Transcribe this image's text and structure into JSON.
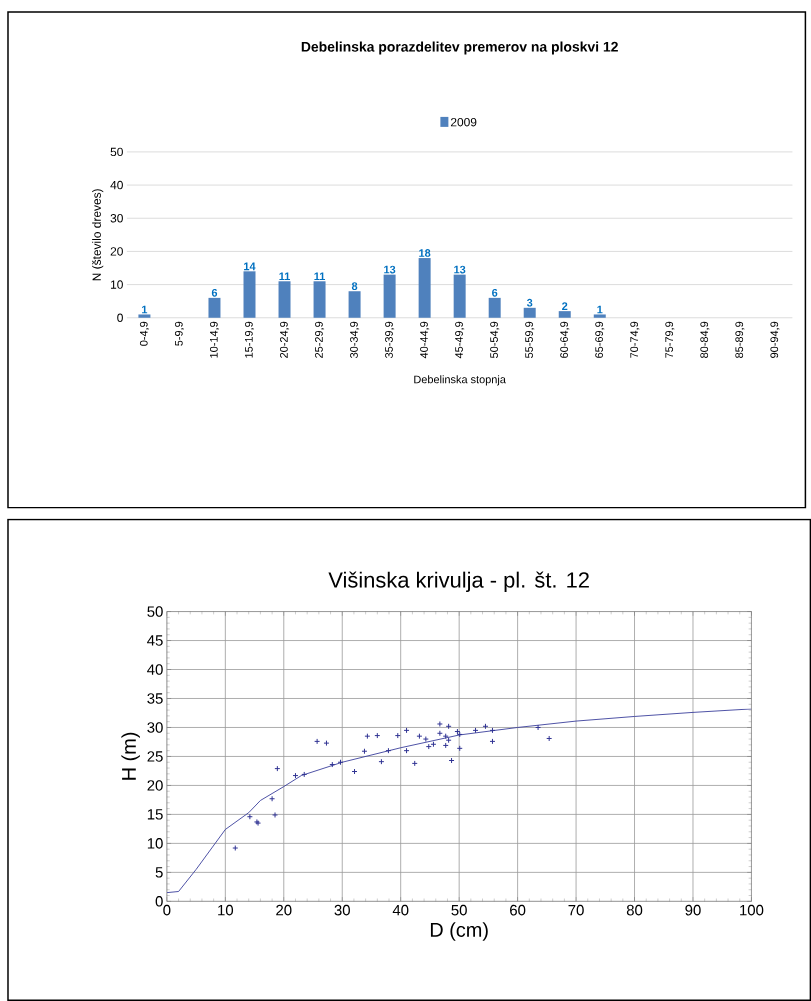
{
  "chart_data": [
    {
      "type": "bar",
      "title": "Debelinska porazdelitev premerov na ploskvi 12",
      "xlabel": "Debelinska stopnja",
      "ylabel": "N (število dreves)",
      "categories": [
        "0-4,9",
        "5-9,9",
        "10-14,9",
        "15-19,9",
        "20-24,9",
        "25-29,9",
        "30-34,9",
        "35-39,9",
        "40-44,9",
        "45-49,9",
        "50-54,9",
        "55-59,9",
        "60-64,9",
        "65-69,9",
        "70-74,9",
        "75-79,9",
        "80-84,9",
        "85-89,9",
        "90-94,9"
      ],
      "series": [
        {
          "name": "2009",
          "color": "#4f81bd",
          "values": [
            1,
            0,
            6,
            14,
            11,
            11,
            8,
            13,
            18,
            13,
            6,
            3,
            2,
            1,
            0,
            0,
            0,
            0,
            0
          ],
          "value_labels": [
            "1",
            null,
            "6",
            "14",
            "11",
            "11",
            "8",
            "13",
            "18",
            "13",
            "6",
            "3",
            "2",
            "1",
            null,
            null,
            null,
            null,
            null
          ]
        }
      ],
      "ylim": [
        0,
        50
      ],
      "yticks": [
        0,
        10,
        20,
        30,
        40,
        50
      ],
      "grid": "y",
      "legend": "top"
    },
    {
      "type": "scatter",
      "title": "Višinska krivulja - pl. št. 12",
      "xlabel": "D (cm)",
      "ylabel": "H (m)",
      "series": [
        {
          "type": "scatter",
          "color": "#2e3192",
          "marker": "cross",
          "x": [
            11.7,
            14.2,
            15.4,
            15.6,
            18.0,
            18.5,
            18.9,
            22.0,
            23.5,
            25.7,
            27.3,
            28.3,
            29.7,
            32.1,
            33.8,
            34.3,
            36.0,
            36.7,
            37.9,
            39.5,
            41.0,
            41.0,
            42.4,
            43.2,
            44.3,
            44.8,
            45.6,
            46.7,
            46.7,
            47.7,
            47.7,
            48.2,
            48.2,
            48.7,
            49.7,
            50.1,
            50.1,
            52.8,
            54.5,
            55.7,
            55.7,
            63.5,
            65.4
          ],
          "values": [
            9.2,
            14.6,
            13.7,
            13.5,
            17.7,
            14.9,
            22.9,
            21.7,
            21.9,
            27.6,
            27.3,
            23.6,
            24.0,
            22.4,
            25.9,
            28.5,
            28.6,
            24.1,
            26.0,
            28.6,
            29.5,
            26.0,
            23.8,
            28.5,
            28.0,
            26.7,
            27.1,
            30.6,
            29.0,
            28.5,
            26.9,
            30.2,
            27.8,
            24.3,
            29.3,
            28.8,
            26.4,
            29.5,
            30.2,
            29.5,
            27.6,
            30.0,
            28.1
          ]
        },
        {
          "type": "line",
          "color": "#3a3f9b",
          "marker": "none",
          "line_style": "solid",
          "x": [
            0,
            2,
            5,
            10,
            14,
            16,
            20,
            23,
            30,
            40,
            50,
            60,
            70,
            80,
            90,
            100
          ],
          "values": [
            1.5,
            1.7,
            5.5,
            12.4,
            15.3,
            17.4,
            19.8,
            21.7,
            24.0,
            26.5,
            28.7,
            30.0,
            31.1,
            31.9,
            32.6,
            33.2
          ]
        }
      ],
      "xlim": [
        0,
        100
      ],
      "xticks": [
        0,
        10,
        20,
        30,
        40,
        50,
        60,
        70,
        80,
        90,
        100
      ],
      "ylim": [
        0,
        50
      ],
      "yticks": [
        0,
        5,
        10,
        15,
        20,
        25,
        30,
        35,
        40,
        45,
        50
      ],
      "grid": true
    }
  ]
}
